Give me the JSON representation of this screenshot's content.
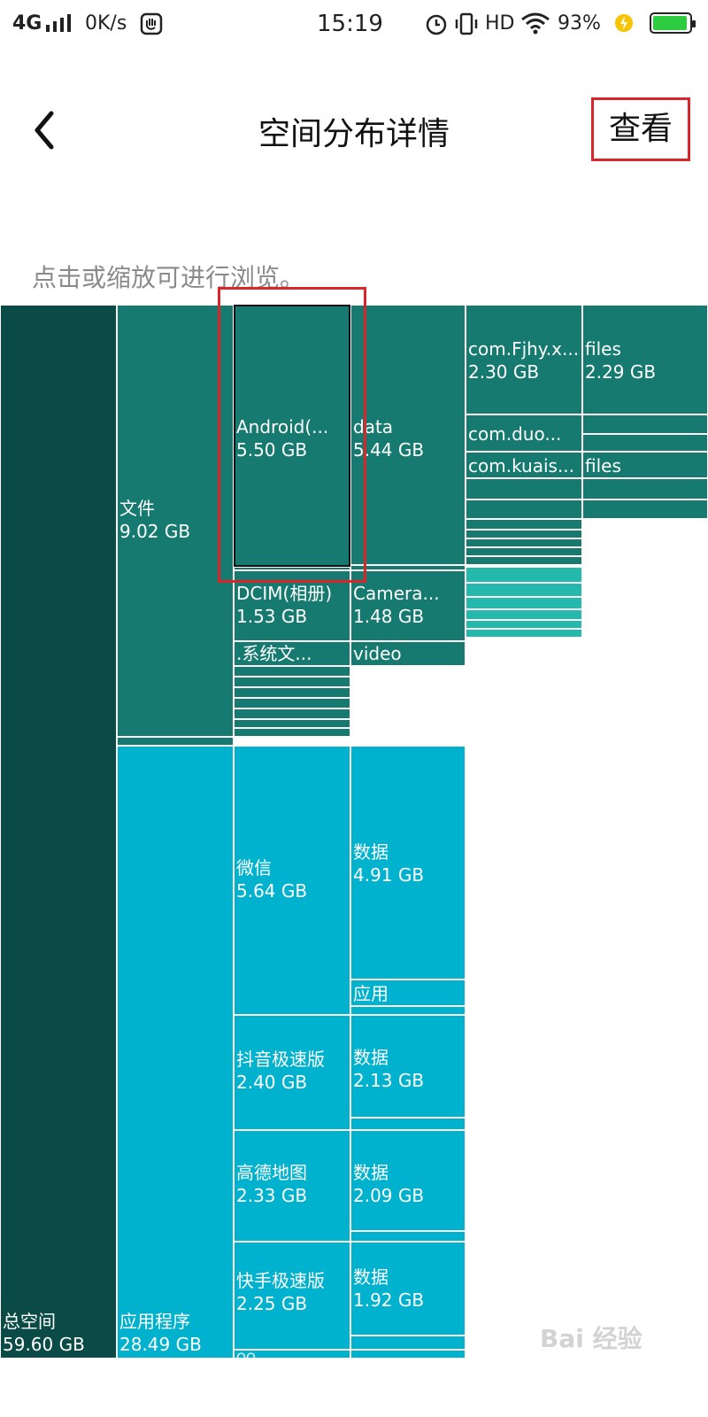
{
  "status_bar": {
    "network": "4G",
    "signal_icon": "signal-icon",
    "speed": "0K/s",
    "time": "15:19",
    "hd": "HD",
    "battery": "93%",
    "battery_level": 0.93
  },
  "header": {
    "back_icon": "chevron-left-icon",
    "title": "空间分布详情",
    "view_button": "查看"
  },
  "hint": "点击或缩放可进行浏览。",
  "treemap": {
    "total": {
      "name": "总空间",
      "size": "59.60 GB"
    },
    "files": {
      "name": "文件",
      "size": "9.02 GB"
    },
    "apps": {
      "name": "应用程序",
      "size": "28.49 GB"
    },
    "android": {
      "name": "Android(...",
      "size": "5.50 GB"
    },
    "data": {
      "name": "data",
      "size": "5.44 GB"
    },
    "fjhy": {
      "name": "com.Fjhy.x...",
      "size": "2.30 GB"
    },
    "fjhy_files": {
      "name": "files",
      "size": "2.29 GB"
    },
    "duo": {
      "name": "com.duo..."
    },
    "kuais": {
      "name": "com.kuais..."
    },
    "kuais_files": {
      "name": "files"
    },
    "dcim": {
      "name": "DCIM(相册)",
      "size": "1.53 GB"
    },
    "camera": {
      "name": "Camera...",
      "size": "1.48 GB"
    },
    "sysfile": {
      "name": ".系统文..."
    },
    "video": {
      "name": "video"
    },
    "wechat": {
      "name": "微信",
      "size": "5.64 GB"
    },
    "wechat_data": {
      "name": "数据",
      "size": "4.91 GB"
    },
    "wechat_app": {
      "name": "应用"
    },
    "douyin": {
      "name": "抖音极速版",
      "size": "2.40 GB"
    },
    "douyin_data": {
      "name": "数据",
      "size": "2.13 GB"
    },
    "gaode": {
      "name": "高德地图",
      "size": "2.33 GB"
    },
    "gaode_data": {
      "name": "数据",
      "size": "2.09 GB"
    },
    "kuaishou": {
      "name": "快手极速版",
      "size": "2.25 GB"
    },
    "kuaishou_data": {
      "name": "数据",
      "size": "1.92 GB"
    },
    "qq": {
      "name": "QQ"
    }
  },
  "watermark": "Bai 经验"
}
